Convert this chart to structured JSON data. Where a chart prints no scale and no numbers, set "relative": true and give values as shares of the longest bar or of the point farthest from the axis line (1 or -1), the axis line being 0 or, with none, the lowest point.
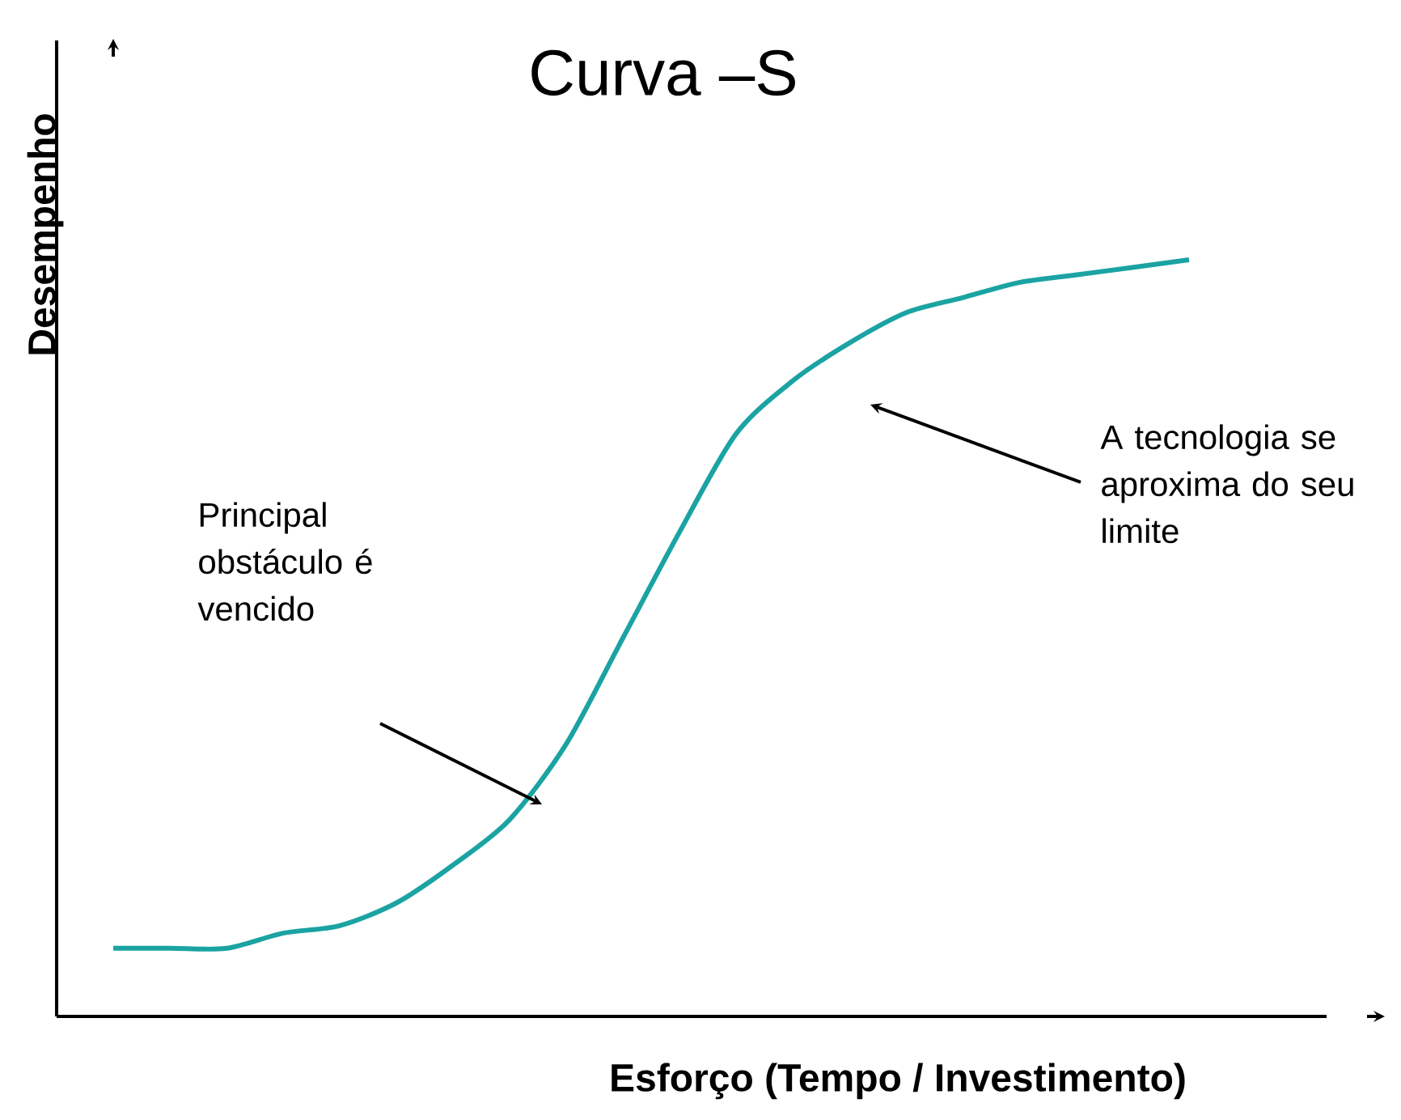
{
  "chart_data": {
    "type": "line",
    "title": "Curva –S",
    "xlabel": "Esforço (Tempo / Investimento)",
    "ylabel": "Desempenho",
    "relative": true,
    "color": "#1ba3a3",
    "categories": [
      null,
      null,
      null,
      null,
      null,
      null,
      null,
      null,
      null,
      null,
      null,
      null,
      null,
      null,
      null,
      null,
      null,
      null,
      null,
      null
    ],
    "values": [
      0.09,
      0.09,
      0.09,
      0.11,
      0.12,
      0.15,
      0.2,
      0.26,
      0.36,
      0.5,
      0.64,
      0.77,
      0.84,
      0.89,
      0.93,
      0.95,
      0.97,
      0.98,
      0.99,
      1.0
    ],
    "annotations": [
      "Principal obstáculo é vencido",
      "A tecnologia se aproxima do seu limite"
    ],
    "marker": "none"
  }
}
